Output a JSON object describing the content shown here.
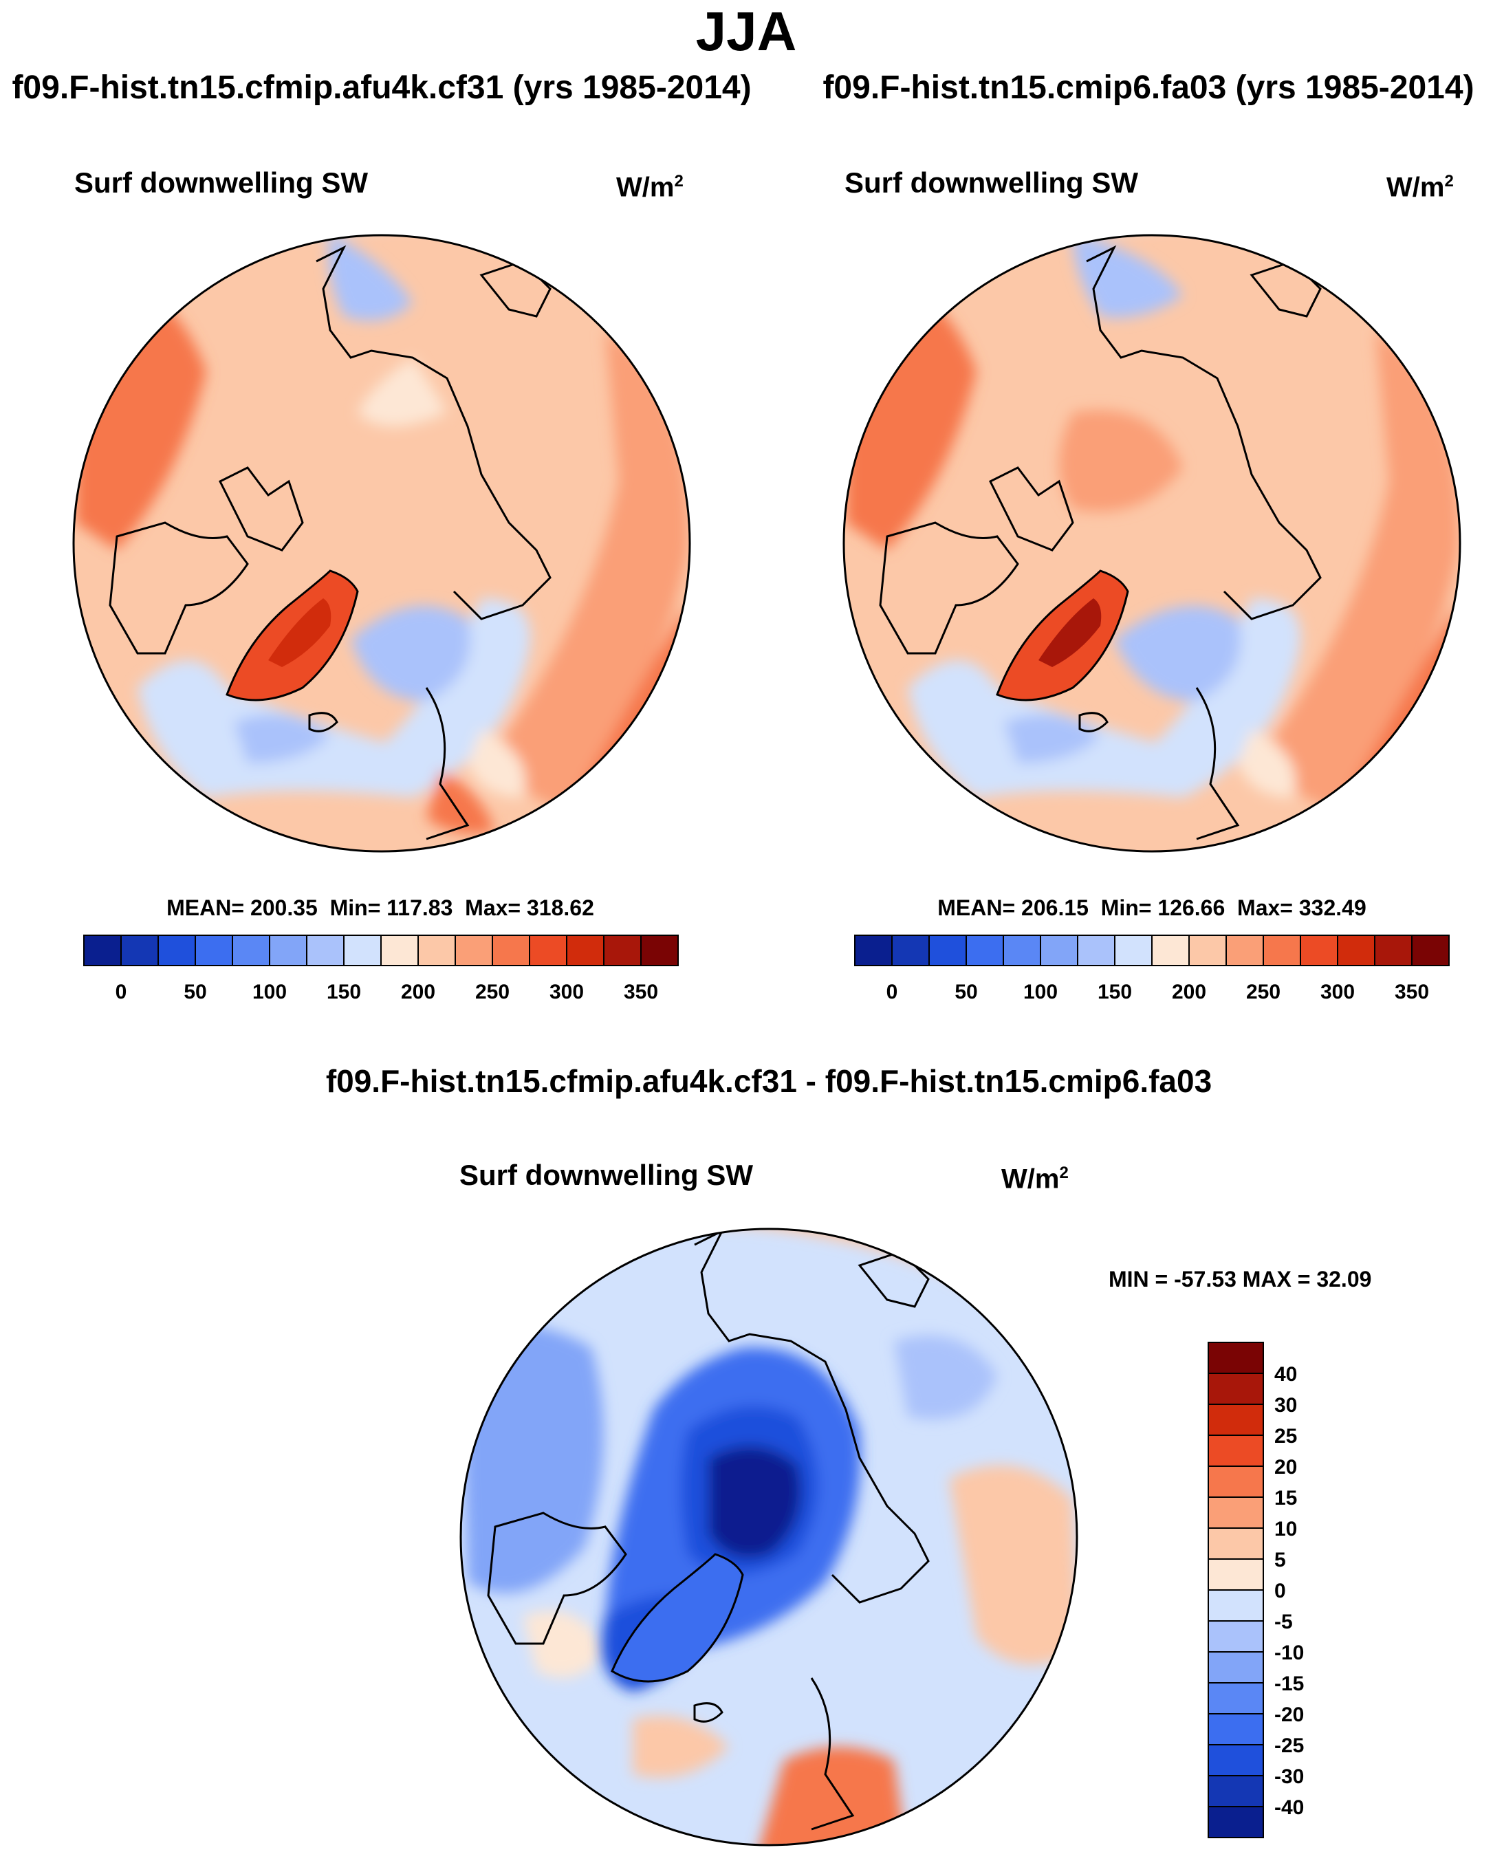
{
  "season": "JJA",
  "panels": [
    {
      "case_title": "f09.F-hist.tn15.cfmip.afu4k.cf31 (yrs 1985-2014)",
      "variable": "Surf downwelling SW",
      "units": "W/m",
      "units_exp": "2",
      "stats": {
        "mean": "MEAN= 200.35",
        "min": "Min= 117.83",
        "max": "Max= 318.62"
      }
    },
    {
      "case_title": "f09.F-hist.tn15.cmip6.fa03 (yrs 1985-2014)",
      "variable": "Surf downwelling SW",
      "units": "W/m",
      "units_exp": "2",
      "stats": {
        "mean": "MEAN= 206.15",
        "min": "Min= 126.66",
        "max": "Max= 332.49"
      }
    }
  ],
  "diff_panel": {
    "title": "f09.F-hist.tn15.cfmip.afu4k.cf31 - f09.F-hist.tn15.cmip6.fa03",
    "variable": "Surf downwelling SW",
    "units": "W/m",
    "units_exp": "2",
    "minmax": "MIN = -57.53 MAX =  32.09"
  },
  "colorbar_main": {
    "colors": [
      "#0a1f8f",
      "#1437b4",
      "#1f50dc",
      "#3c6ef0",
      "#5a87f5",
      "#82a5f8",
      "#aac2fb",
      "#d2e2fd",
      "#fde7d5",
      "#fcc8a8",
      "#fa9f77",
      "#f6774c",
      "#ec4b25",
      "#d12c0c",
      "#a8170a",
      "#7a0404"
    ],
    "labels": [
      "0",
      "50",
      "100",
      "150",
      "200",
      "250",
      "300",
      "350"
    ]
  },
  "colorbar_diff": {
    "colors": [
      "#0a1f8f",
      "#1437b4",
      "#1f50dc",
      "#3c6ef0",
      "#5a87f5",
      "#82a5f8",
      "#aac2fb",
      "#d2e2fd",
      "#fde7d5",
      "#fcc8a8",
      "#fa9f77",
      "#f6774c",
      "#ec4b25",
      "#d12c0c",
      "#a8170a",
      "#7a0404"
    ],
    "labels": [
      "40",
      "30",
      "25",
      "20",
      "15",
      "10",
      "5",
      "0",
      "-5",
      "-10",
      "-15",
      "-20",
      "-25",
      "-30",
      "-40"
    ]
  }
}
